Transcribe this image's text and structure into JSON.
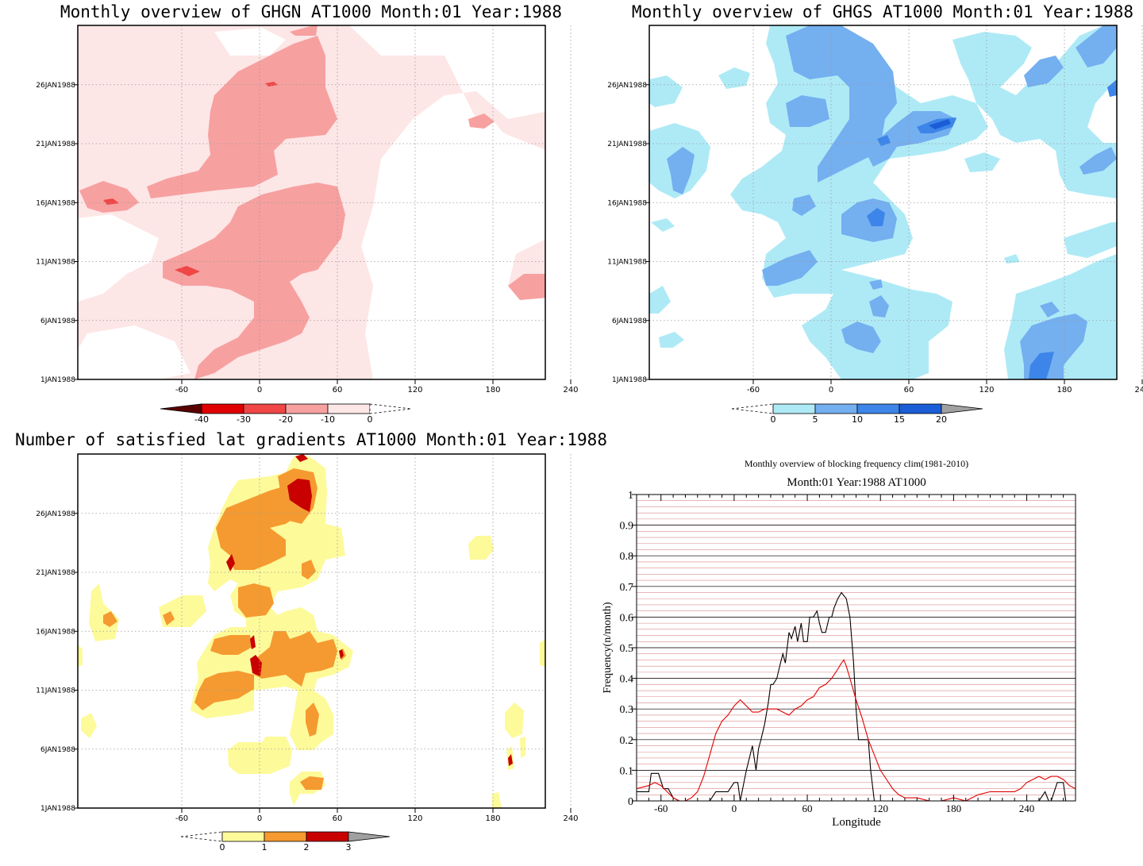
{
  "chart_data": [
    {
      "type": "heatmap",
      "title": "Monthly overview of GHGN AT1000 Month:01 Year:1988",
      "x_ticks": [
        "-60",
        "0",
        "60",
        "120",
        "180",
        "240"
      ],
      "y_ticks": [
        "1JAN1988",
        "6JAN1988",
        "11JAN1988",
        "16JAN1988",
        "21JAN1988",
        "26JAN1988"
      ],
      "colorbar": {
        "labels": [
          "-40",
          "-30",
          "-20",
          "-10",
          "0"
        ],
        "colors": [
          "#5a0000",
          "#e00000",
          "#f04646",
          "#f7a0a0",
          "#fde6e6",
          "#ffffff"
        ]
      }
    },
    {
      "type": "heatmap",
      "title": "Monthly overview of GHGS AT1000 Month:01 Year:1988",
      "x_ticks": [
        "-60",
        "0",
        "60",
        "120",
        "180",
        "240"
      ],
      "y_ticks": [
        "1JAN1988",
        "6JAN1988",
        "11JAN1988",
        "16JAN1988",
        "21JAN1988",
        "26JAN1988"
      ],
      "colorbar": {
        "labels": [
          "0",
          "5",
          "10",
          "15",
          "20"
        ],
        "colors": [
          "#ffffff",
          "#aeeaf6",
          "#74aff0",
          "#3d85e8",
          "#1a5dd6",
          "#a0a0a0"
        ]
      }
    },
    {
      "type": "heatmap",
      "title": "Number of satisfied lat gradients AT1000 Month:01 Year:1988",
      "x_ticks": [
        "-60",
        "0",
        "60",
        "120",
        "180",
        "240"
      ],
      "y_ticks": [
        "1JAN1988",
        "6JAN1988",
        "11JAN1988",
        "16JAN1988",
        "21JAN1988",
        "26JAN1988"
      ],
      "colorbar": {
        "labels": [
          "0",
          "1",
          "2",
          "3"
        ],
        "colors": [
          "#ffffff",
          "#fdfa9a",
          "#f59a30",
          "#c80000",
          "#a0a0a0"
        ]
      }
    },
    {
      "type": "line",
      "title": "Monthly overview of blocking frequency clim(1981-2010)",
      "subtitle": "Month:01 Year:1988  AT1000",
      "xlabel": "Longitude",
      "ylabel": "Frequency(n/month)",
      "xlim": [
        -80,
        280
      ],
      "ylim": [
        0,
        1
      ],
      "x_ticks": [
        "-60",
        "0",
        "60",
        "120",
        "180",
        "240"
      ],
      "y_ticks": [
        "0",
        "0.1",
        "0.2",
        "0.3",
        "0.4",
        "0.5",
        "0.6",
        "0.7",
        "0.8",
        "0.9",
        "1"
      ],
      "colors": {
        "Year": "#000000",
        "Climatology": "#e00000"
      },
      "series": [
        {
          "color": "#000000",
          "x": [
            -80,
            -70,
            -68,
            -62,
            -58,
            -54,
            -50,
            -45,
            -40,
            -35,
            -30,
            -25,
            -20,
            -15,
            -10,
            -5,
            0,
            3,
            5,
            8,
            10,
            15,
            18,
            20,
            22,
            25,
            28,
            30,
            32,
            35,
            38,
            40,
            42,
            45,
            47,
            50,
            52,
            55,
            57,
            60,
            62,
            65,
            68,
            70,
            72,
            75,
            78,
            80,
            82,
            85,
            88,
            90,
            92,
            95,
            98,
            100,
            102,
            105,
            108,
            110,
            112,
            115,
            118,
            120,
            125,
            130,
            135,
            140,
            150,
            160,
            180,
            200,
            220,
            230,
            235,
            240,
            245,
            250,
            255,
            258,
            260,
            265,
            270,
            272,
            275,
            280
          ],
          "values": [
            0.03,
            0.03,
            0.09,
            0.09,
            0.04,
            0.04,
            0.01,
            0.0,
            0.0,
            0.0,
            0.0,
            0.0,
            0.0,
            0.03,
            0.03,
            0.03,
            0.06,
            0.06,
            0.0,
            0.06,
            0.1,
            0.18,
            0.1,
            0.17,
            0.2,
            0.25,
            0.32,
            0.38,
            0.38,
            0.4,
            0.45,
            0.48,
            0.45,
            0.55,
            0.53,
            0.57,
            0.52,
            0.58,
            0.52,
            0.52,
            0.6,
            0.6,
            0.62,
            0.58,
            0.55,
            0.55,
            0.6,
            0.6,
            0.63,
            0.66,
            0.68,
            0.67,
            0.66,
            0.6,
            0.45,
            0.3,
            0.2,
            0.2,
            0.2,
            0.2,
            0.1,
            0.0,
            0.0,
            0.0,
            0.0,
            0.0,
            0.0,
            0.0,
            0.0,
            0.0,
            0.0,
            0.0,
            0.0,
            0.0,
            0.0,
            0.0,
            0.0,
            0.0,
            0.03,
            0.0,
            0.0,
            0.06,
            0.06,
            0.0,
            0.0,
            0.0
          ]
        },
        {
          "color": "#e00000",
          "x": [
            -80,
            -70,
            -65,
            -60,
            -55,
            -50,
            -45,
            -40,
            -35,
            -30,
            -25,
            -20,
            -15,
            -10,
            -5,
            0,
            5,
            10,
            15,
            20,
            25,
            30,
            35,
            40,
            45,
            50,
            55,
            60,
            65,
            70,
            75,
            80,
            85,
            88,
            90,
            92,
            95,
            100,
            105,
            110,
            115,
            120,
            125,
            130,
            135,
            140,
            150,
            160,
            170,
            180,
            190,
            200,
            210,
            220,
            225,
            230,
            235,
            240,
            245,
            250,
            255,
            260,
            265,
            270,
            275,
            280
          ],
          "values": [
            0.04,
            0.05,
            0.06,
            0.05,
            0.03,
            0.01,
            0.0,
            0.0,
            0.01,
            0.03,
            0.08,
            0.15,
            0.22,
            0.26,
            0.28,
            0.31,
            0.33,
            0.31,
            0.29,
            0.29,
            0.3,
            0.3,
            0.3,
            0.29,
            0.28,
            0.3,
            0.31,
            0.33,
            0.34,
            0.37,
            0.38,
            0.4,
            0.43,
            0.45,
            0.46,
            0.44,
            0.4,
            0.33,
            0.27,
            0.2,
            0.15,
            0.1,
            0.07,
            0.04,
            0.02,
            0.01,
            0.01,
            0.0,
            0.0,
            0.01,
            0.0,
            0.02,
            0.03,
            0.03,
            0.03,
            0.03,
            0.04,
            0.06,
            0.07,
            0.08,
            0.07,
            0.08,
            0.08,
            0.07,
            0.05,
            0.04
          ]
        }
      ]
    }
  ]
}
